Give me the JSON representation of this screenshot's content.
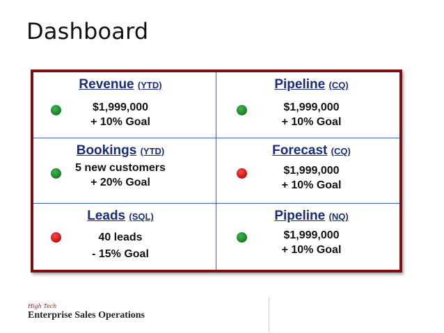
{
  "page": {
    "title": "Dashboard"
  },
  "cells": [
    {
      "heading": "Revenue",
      "qualifier": "(YTD)",
      "lines": [
        "$1,999,000",
        "+ 10% Goal"
      ],
      "status": "green"
    },
    {
      "heading": "Pipeline",
      "qualifier": "(CQ)",
      "lines": [
        "$1,999,000",
        "+ 10% Goal"
      ],
      "status": "green"
    },
    {
      "heading": "Bookings",
      "qualifier": "(YTD)",
      "lines": [
        "5 new customers",
        "+ 20% Goal"
      ],
      "status": "green"
    },
    {
      "heading": "Forecast",
      "qualifier": "(CQ)",
      "lines": [
        "$1,999,000",
        "+ 10% Goal"
      ],
      "status": "red"
    },
    {
      "heading": "Leads",
      "qualifier": "(SQL)",
      "lines": [
        "40 leads",
        "- 15% Goal"
      ],
      "status": "red"
    },
    {
      "heading": "Pipeline",
      "qualifier": "(NQ)",
      "lines": [
        "$1,999,000",
        "+ 10% Goal"
      ],
      "status": "green"
    }
  ],
  "colors": {
    "border": "#7b0f14",
    "heading": "#1a2b78",
    "green": "#2a9a3a",
    "red": "#e01b1b"
  },
  "footer": {
    "logo_text": "High Tech",
    "org_name": "Enterprise Sales Operations"
  }
}
